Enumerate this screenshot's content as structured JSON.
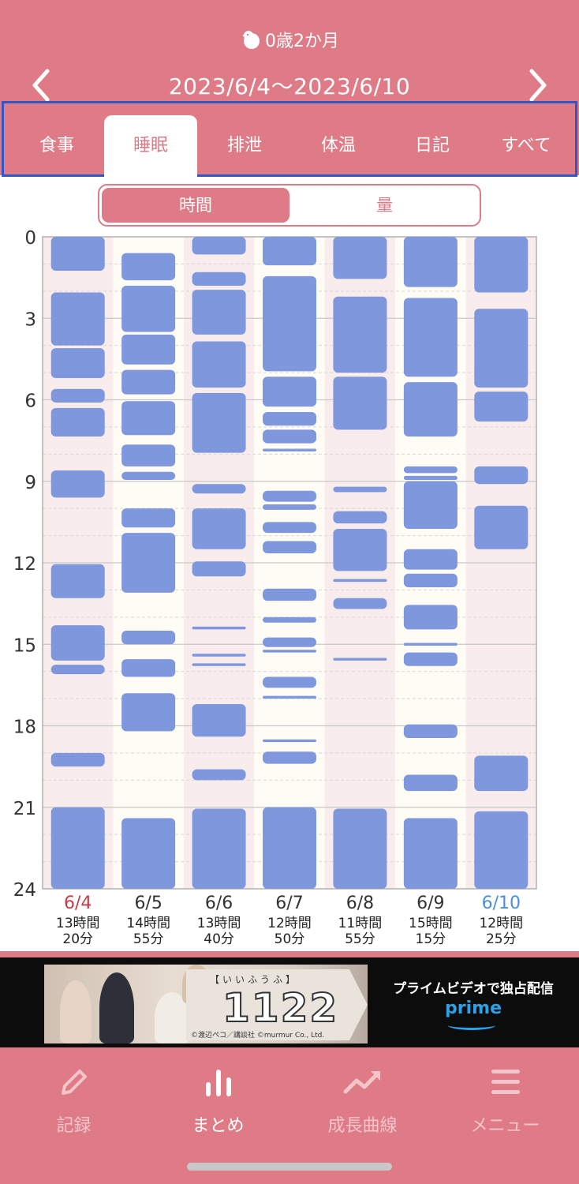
{
  "header": {
    "age": "0歳2か月",
    "date_range": "2023/6/4〜2023/6/10"
  },
  "tabs": [
    {
      "label": "食事",
      "active": false
    },
    {
      "label": "睡眠",
      "active": true
    },
    {
      "label": "排泄",
      "active": false
    },
    {
      "label": "体温",
      "active": false
    },
    {
      "label": "日記",
      "active": false
    },
    {
      "label": "すべて",
      "active": false
    }
  ],
  "toggle": {
    "time": "時間",
    "amount": "量"
  },
  "chart_data": {
    "type": "timeline",
    "y_ticks": [
      "0",
      "3",
      "6",
      "9",
      "12",
      "15",
      "18",
      "21",
      "24"
    ],
    "y_range": [
      0,
      24
    ],
    "grid": true,
    "days": [
      {
        "date": "6/4",
        "total_line1": "13時間",
        "total_line2": "20分",
        "date_color": "#c43c4a",
        "blocks": [
          [
            0,
            1.25
          ],
          [
            2.05,
            4.0
          ],
          [
            4.1,
            5.2
          ],
          [
            5.6,
            6.1
          ],
          [
            6.3,
            7.35
          ],
          [
            8.6,
            9.6
          ],
          [
            12.05,
            13.3
          ],
          [
            14.3,
            15.6
          ],
          [
            15.75,
            16.1
          ],
          [
            19.0,
            19.5
          ],
          [
            21.0,
            24.0
          ]
        ]
      },
      {
        "date": "6/5",
        "total_line1": "14時間",
        "total_line2": "55分",
        "date_color": "#333333",
        "blocks": [
          [
            0.6,
            1.6
          ],
          [
            1.8,
            3.5
          ],
          [
            3.6,
            4.7
          ],
          [
            4.9,
            5.8
          ],
          [
            6.05,
            7.3
          ],
          [
            7.65,
            8.45
          ],
          [
            8.65,
            8.95
          ],
          [
            10.0,
            10.7
          ],
          [
            10.9,
            13.1
          ],
          [
            14.5,
            15.0
          ],
          [
            15.55,
            16.2
          ],
          [
            16.8,
            18.2
          ],
          [
            21.4,
            24.0
          ]
        ]
      },
      {
        "date": "6/6",
        "total_line1": "13時間",
        "total_line2": "40分",
        "date_color": "#333333",
        "blocks": [
          [
            0,
            0.65
          ],
          [
            1.3,
            1.8
          ],
          [
            1.95,
            3.6
          ],
          [
            3.85,
            5.55
          ],
          [
            5.75,
            7.95
          ],
          [
            9.1,
            9.45
          ],
          [
            10.0,
            11.5
          ],
          [
            11.95,
            12.5
          ],
          [
            14.35,
            14.45
          ],
          [
            15.35,
            15.45
          ],
          [
            15.7,
            15.8
          ],
          [
            17.2,
            18.4
          ],
          [
            19.6,
            20.0
          ],
          [
            21.05,
            24.0
          ]
        ]
      },
      {
        "date": "6/7",
        "total_line1": "12時間",
        "total_line2": "50分",
        "date_color": "#333333",
        "blocks": [
          [
            0,
            1.05
          ],
          [
            1.45,
            4.95
          ],
          [
            5.15,
            6.25
          ],
          [
            6.45,
            6.95
          ],
          [
            7.1,
            7.6
          ],
          [
            7.8,
            7.9
          ],
          [
            9.35,
            9.75
          ],
          [
            9.85,
            10.05
          ],
          [
            10.5,
            10.9
          ],
          [
            11.2,
            11.65
          ],
          [
            12.95,
            13.4
          ],
          [
            14.0,
            14.2
          ],
          [
            14.75,
            15.1
          ],
          [
            15.2,
            15.3
          ],
          [
            16.2,
            16.6
          ],
          [
            16.9,
            17.0
          ],
          [
            18.5,
            18.6
          ],
          [
            18.95,
            19.4
          ],
          [
            21.0,
            24.0
          ]
        ]
      },
      {
        "date": "6/8",
        "total_line1": "11時間",
        "total_line2": "55分",
        "date_color": "#333333",
        "blocks": [
          [
            0,
            1.55
          ],
          [
            2.2,
            5.0
          ],
          [
            5.15,
            7.1
          ],
          [
            9.2,
            9.4
          ],
          [
            10.1,
            10.55
          ],
          [
            10.75,
            12.3
          ],
          [
            12.6,
            12.7
          ],
          [
            13.3,
            13.7
          ],
          [
            15.5,
            15.6
          ],
          [
            21.05,
            24.0
          ]
        ]
      },
      {
        "date": "6/9",
        "total_line1": "15時間",
        "total_line2": "15分",
        "date_color": "#333333",
        "blocks": [
          [
            0,
            1.85
          ],
          [
            2.25,
            5.15
          ],
          [
            5.35,
            7.35
          ],
          [
            8.45,
            8.7
          ],
          [
            8.8,
            8.95
          ],
          [
            9.0,
            10.75
          ],
          [
            11.5,
            12.25
          ],
          [
            12.4,
            12.9
          ],
          [
            13.55,
            14.45
          ],
          [
            14.95,
            15.05
          ],
          [
            15.3,
            15.8
          ],
          [
            17.95,
            18.45
          ],
          [
            19.8,
            20.4
          ],
          [
            21.4,
            24.0
          ]
        ]
      },
      {
        "date": "6/10",
        "total_line1": "12時間",
        "total_line2": "25分",
        "date_color": "#4a90d9",
        "blocks": [
          [
            0,
            2.05
          ],
          [
            2.65,
            5.55
          ],
          [
            5.7,
            6.8
          ],
          [
            8.45,
            9.1
          ],
          [
            9.9,
            11.5
          ],
          [
            19.1,
            20.4
          ],
          [
            21.15,
            24.0
          ]
        ]
      }
    ]
  },
  "ad": {
    "brand_brackets": "【いいふうふ】",
    "title": "1122",
    "credit": "©渡辺ペコ／講談社 ©murmur Co., Ltd.",
    "tagline": "プライムビデオで独占配信",
    "prime": "prime"
  },
  "bottom_nav": [
    {
      "label": "記録",
      "icon": "pencil-icon",
      "current": false
    },
    {
      "label": "まとめ",
      "icon": "bar-chart-icon",
      "current": true
    },
    {
      "label": "成長曲線",
      "icon": "trend-up-icon",
      "current": false
    },
    {
      "label": "メニュー",
      "icon": "menu-icon",
      "current": false
    }
  ]
}
